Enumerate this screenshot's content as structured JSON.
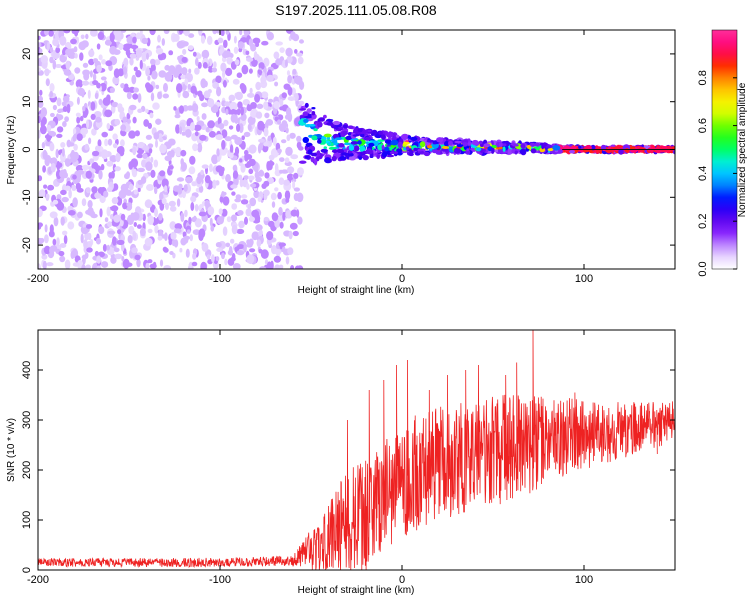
{
  "title": "S197.2025.111.05.08.R08",
  "colors": {
    "snr_line": "#ee2222",
    "ridge_line": "#111111",
    "colormap": [
      "#ffffff",
      "#dcc2ff",
      "#8f2bff",
      "#5500ee",
      "#0000ff",
      "#0090ff",
      "#00e8ff",
      "#00ff66",
      "#33ff00",
      "#ccff00",
      "#ffee00",
      "#ff9900",
      "#ff2200",
      "#ff0077",
      "#ff2e9a"
    ]
  },
  "chart_data": [
    {
      "type": "heatmap",
      "title": "S197.2025.111.05.08.R08",
      "xlabel": "Height of straight line (km)",
      "ylabel": "Frequency (Hz)",
      "xlim": [
        -200,
        150
      ],
      "ylim": [
        -25,
        25
      ],
      "xticks": [
        -200,
        -100,
        0,
        100
      ],
      "xtick_labels": [
        "-200",
        "-100",
        "0",
        "100"
      ],
      "yticks": [
        -20,
        -10,
        0,
        10,
        20
      ],
      "ytick_labels": [
        "-20",
        "-10",
        "0",
        "10",
        "20"
      ],
      "colorbar": {
        "label": "Normalized spectral amplitude",
        "range": [
          0,
          1
        ],
        "ticks": [
          0.0,
          0.2,
          0.4,
          0.6,
          0.8
        ],
        "tick_labels": [
          "0.0",
          "0.2",
          "0.4",
          "0.6",
          "0.8"
        ]
      },
      "regions": [
        {
          "name": "noise",
          "x_range": [
            -200,
            -55
          ],
          "freq_range": [
            -25,
            25
          ],
          "amplitude": [
            0.0,
            0.1
          ]
        },
        {
          "name": "signal",
          "x_range": [
            -55,
            150
          ],
          "amplitude": [
            0.1,
            1.0
          ]
        }
      ],
      "ridge": {
        "x": [
          -55,
          -50,
          -40,
          -30,
          -20,
          -10,
          0,
          20,
          40,
          60,
          80,
          90,
          150
        ],
        "freq": [
          4,
          3,
          2,
          1.5,
          1.2,
          1,
          0.8,
          0.6,
          0.5,
          0.4,
          0.2,
          0,
          0
        ],
        "halfwidth": [
          7,
          6,
          4.5,
          3.5,
          3,
          2.5,
          2,
          1.5,
          1.2,
          1,
          0.8,
          0.5,
          0.5
        ]
      }
    },
    {
      "type": "line",
      "xlabel": "Height of straight line (km)",
      "ylabel": "SNR (10 * v/v)",
      "xlim": [
        -200,
        150
      ],
      "ylim": [
        0,
        480
      ],
      "xticks": [
        -200,
        -100,
        0,
        100
      ],
      "xtick_labels": [
        "-200",
        "-100",
        "0",
        "100"
      ],
      "yticks": [
        0,
        100,
        200,
        300,
        400
      ],
      "ytick_labels": [
        "0",
        "100",
        "200",
        "300",
        "400"
      ],
      "trend": {
        "x": [
          -200,
          -150,
          -100,
          -60,
          -45,
          -30,
          -20,
          -10,
          0,
          20,
          40,
          60,
          80,
          100,
          120,
          140,
          150
        ],
        "y": [
          15,
          15,
          15,
          18,
          50,
          90,
          110,
          150,
          185,
          210,
          230,
          245,
          260,
          270,
          280,
          290,
          300
        ]
      },
      "noise_amplitude": {
        "x": [
          -200,
          -60,
          -45,
          -30,
          0,
          60,
          100,
          150
        ],
        "y": [
          8,
          10,
          60,
          110,
          120,
          110,
          70,
          40
        ]
      },
      "spikes": {
        "x": [
          -30,
          -18,
          -10,
          -3,
          3,
          15,
          25,
          35,
          42,
          57,
          63,
          72,
          95,
          105,
          140,
          150
        ],
        "y": [
          300,
          360,
          380,
          410,
          420,
          360,
          390,
          400,
          410,
          390,
          415,
          485,
          355,
          335,
          320,
          360
        ]
      }
    }
  ]
}
